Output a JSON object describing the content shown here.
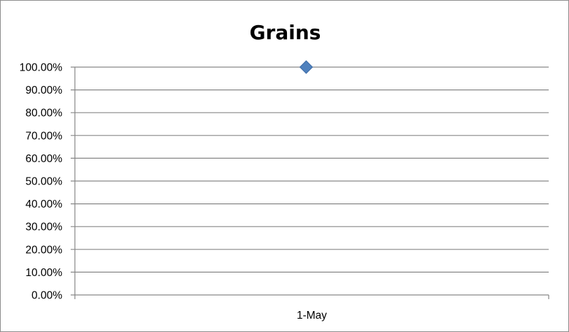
{
  "chart_data": {
    "type": "scatter",
    "title": "Grains",
    "xlabel": "",
    "ylabel": "",
    "categories": [
      "1-May"
    ],
    "series": [
      {
        "values": [
          1.0
        ],
        "color": "#4f81bd",
        "marker": "diamond"
      }
    ],
    "ylim": [
      0,
      1
    ],
    "y_ticks": [
      "0.00%",
      "10.00%",
      "20.00%",
      "30.00%",
      "40.00%",
      "50.00%",
      "60.00%",
      "70.00%",
      "80.00%",
      "90.00%",
      "100.00%"
    ],
    "grid": true,
    "legend": "none",
    "colors": {
      "gridline": "#868686",
      "marker_fill": "#4f81bd",
      "marker_stroke": "#3a6aa6"
    }
  }
}
